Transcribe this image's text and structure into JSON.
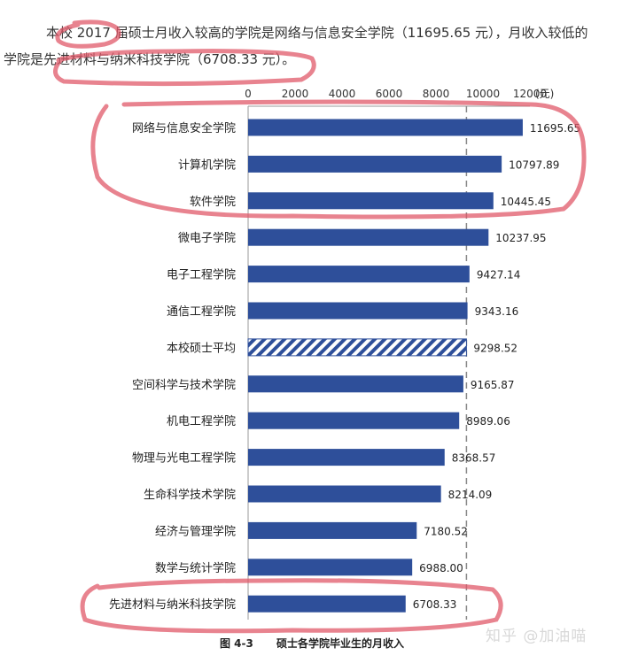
{
  "intro": {
    "line1": "本校 2017 届硕士月收入较高的学院是网络与信息安全学院（11695.65 元），月收入较低的",
    "line2": "学院是先进材料与纳米科技学院（6708.33 元）。"
  },
  "caption": {
    "figure_no": "图 4-3",
    "title": "硕士各学院毕业生的月收入"
  },
  "watermark": "知乎 @加油喵",
  "colors": {
    "bar": "#2e4f9a",
    "average_hatch": "#2e4f9a",
    "highlight": "#e05a6a",
    "reference_line": "#888888"
  },
  "chart_data": {
    "type": "bar",
    "orientation": "horizontal",
    "xlim": [
      0,
      12000
    ],
    "x_ticks": [
      "0",
      "2000",
      "4000",
      "6000",
      "8000",
      "10000",
      "12000"
    ],
    "x_unit": "(元)",
    "categories": [
      "网络与信息安全学院",
      "计算机学院",
      "软件学院",
      "微电子学院",
      "电子工程学院",
      "通信工程学院",
      "本校硕士平均",
      "空间科学与技术学院",
      "机电工程学院",
      "物理与光电工程学院",
      "生命科学技术学院",
      "经济与管理学院",
      "数学与统计学院",
      "先进材料与纳米科技学院"
    ],
    "values": [
      11695.65,
      10797.89,
      10445.45,
      10237.95,
      9427.14,
      9343.16,
      9298.52,
      9165.87,
      8989.06,
      8368.57,
      8214.09,
      7180.52,
      6988.0,
      6708.33
    ],
    "value_labels": [
      "11695.65",
      "10797.89",
      "10445.45",
      "10237.95",
      "9427.14",
      "9343.16",
      "9298.52",
      "9165.87",
      "8989.06",
      "8368.57",
      "8214.09",
      "7180.52",
      "6988.00",
      "6708.33"
    ],
    "average_category": "本校硕士平均",
    "reference_line_value": 9298.52,
    "legend": "none",
    "grid": false
  }
}
